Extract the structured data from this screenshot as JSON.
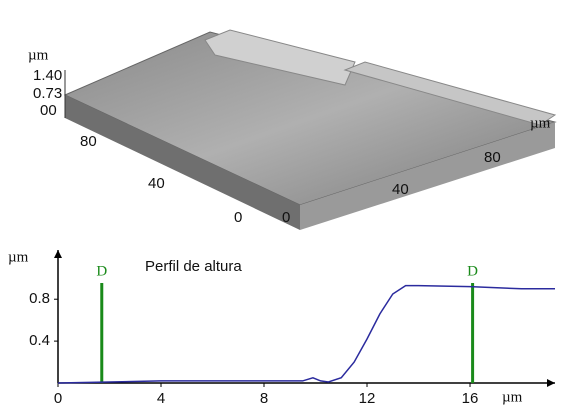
{
  "surface_plot": {
    "z_unit": "µm",
    "z_ticks": [
      "1.40",
      "0.73",
      "00"
    ],
    "y_ticks": [
      "80",
      "40",
      "0"
    ],
    "x_ticks": [
      "0",
      "40",
      "80"
    ],
    "x_unit": "µm"
  },
  "chart_data": {
    "type": "line",
    "title": "Perfil de altura",
    "y_label": "µm",
    "x_label": "µm",
    "x": [
      0,
      2,
      4,
      6,
      8,
      9.5,
      9.9,
      10.2,
      10.5,
      11,
      11.5,
      12,
      12.5,
      13,
      13.5,
      14,
      16,
      18,
      19.3
    ],
    "series": [
      {
        "color": "#2b2b9e",
        "values": [
          0.0,
          0.01,
          0.02,
          0.02,
          0.02,
          0.02,
          0.05,
          0.02,
          0.01,
          0.05,
          0.2,
          0.42,
          0.66,
          0.85,
          0.93,
          0.93,
          0.92,
          0.9,
          0.9
        ]
      }
    ],
    "xlim": [
      0,
      19.3
    ],
    "ylim": [
      0,
      1.27
    ],
    "xticks": [
      0,
      4,
      8,
      12,
      16
    ],
    "yticks": [
      0.4,
      0.8
    ],
    "markers": [
      {
        "x": 1.7,
        "label": "D",
        "color": "#1a8a1a"
      },
      {
        "x": 16.1,
        "label": "D",
        "color": "#1a8a1a"
      }
    ]
  }
}
